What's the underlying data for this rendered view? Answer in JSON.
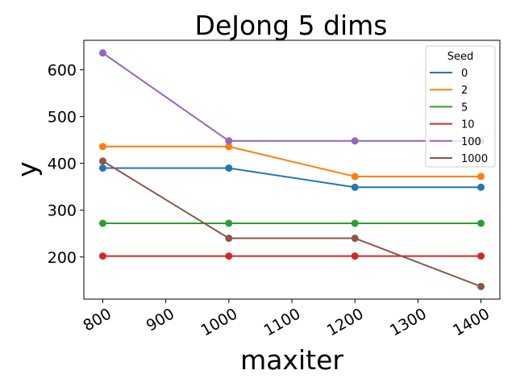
{
  "chart_data": {
    "type": "line",
    "title": "DeJong 5 dims",
    "xlabel": "maxiter",
    "ylabel": "y",
    "x": [
      800,
      1000,
      1200,
      1400
    ],
    "xticks": [
      800,
      900,
      1000,
      1100,
      1200,
      1300,
      1400
    ],
    "xtick_labels": [
      "800",
      "900",
      "1000",
      "1100",
      "1200",
      "1300",
      "1400"
    ],
    "xtick_rotation": 30,
    "xlim": [
      770,
      1430
    ],
    "yticks": [
      200,
      300,
      400,
      500,
      600
    ],
    "ytick_labels": [
      "200",
      "300",
      "400",
      "500",
      "600"
    ],
    "ylim": [
      110,
      663
    ],
    "grid": false,
    "legend": {
      "title": "Seed",
      "placement": "upper right"
    },
    "series": [
      {
        "name": "0",
        "color": "#1f77b4",
        "values": [
          390,
          390,
          349,
          349
        ]
      },
      {
        "name": "2",
        "color": "#ff7f0e",
        "values": [
          436,
          436,
          372,
          372
        ]
      },
      {
        "name": "5",
        "color": "#2ca02c",
        "values": [
          272,
          272,
          272,
          272
        ]
      },
      {
        "name": "10",
        "color": "#d62728",
        "values": [
          202,
          202,
          202,
          202
        ]
      },
      {
        "name": "100",
        "color": "#9467bd",
        "values": [
          636,
          448,
          448,
          448
        ]
      },
      {
        "name": "1000",
        "color": "#8c564b",
        "values": [
          405,
          240,
          240,
          137
        ]
      }
    ]
  }
}
